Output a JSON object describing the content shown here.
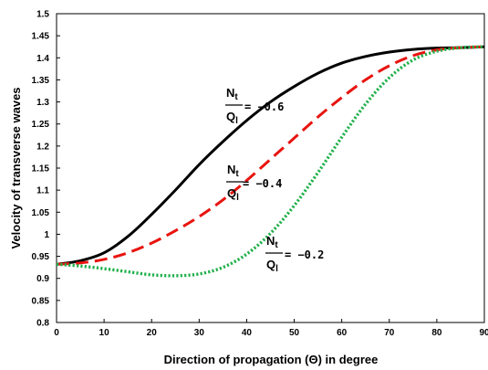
{
  "chart_data": {
    "type": "line",
    "xlabel": "Direction of propagation (Θ) in degree",
    "ylabel": "Velocity of transverse waves",
    "xlim": [
      0,
      90
    ],
    "ylim": [
      0.8,
      1.5
    ],
    "x_ticks": [
      "0",
      "10",
      "20",
      "30",
      "40",
      "50",
      "60",
      "70",
      "80",
      "90"
    ],
    "y_ticks": [
      "0.8",
      "0.85",
      "0.9",
      "0.95",
      "1",
      "1.05",
      "1.1",
      "1.15",
      "1.2",
      "1.25",
      "1.3",
      "1.35",
      "1.4",
      "1.45",
      "1.5"
    ],
    "grid": false,
    "series": [
      {
        "name": "Nt/Ql = −0.6",
        "color": "#000000",
        "style": "solid",
        "x": [
          0,
          5,
          10,
          15,
          20,
          25,
          30,
          35,
          40,
          45,
          50,
          55,
          60,
          65,
          70,
          75,
          80,
          85,
          90
        ],
        "y": [
          0.932,
          0.94,
          0.958,
          0.995,
          1.045,
          1.1,
          1.158,
          1.21,
          1.258,
          1.3,
          1.335,
          1.365,
          1.388,
          1.403,
          1.413,
          1.419,
          1.422,
          1.423,
          1.425
        ]
      },
      {
        "name": "Nt/Ql = −0.4",
        "color": "#e8140f",
        "style": "dashed",
        "x": [
          0,
          5,
          10,
          15,
          20,
          25,
          30,
          35,
          40,
          45,
          50,
          55,
          60,
          65,
          70,
          75,
          80,
          85,
          90
        ],
        "y": [
          0.932,
          0.935,
          0.943,
          0.958,
          0.98,
          1.008,
          1.04,
          1.078,
          1.122,
          1.17,
          1.218,
          1.266,
          1.31,
          1.35,
          1.382,
          1.405,
          1.418,
          1.423,
          1.425
        ]
      },
      {
        "name": "Nt/Ql = −0.2",
        "color": "#1fb04a",
        "style": "dotted",
        "x": [
          0,
          5,
          10,
          15,
          20,
          25,
          30,
          35,
          40,
          45,
          50,
          55,
          60,
          65,
          70,
          75,
          80,
          85,
          90
        ],
        "y": [
          0.932,
          0.928,
          0.922,
          0.915,
          0.908,
          0.906,
          0.91,
          0.925,
          0.955,
          1.002,
          1.065,
          1.14,
          1.22,
          1.295,
          1.355,
          1.395,
          1.415,
          1.423,
          1.425
        ]
      }
    ],
    "annotations": [
      {
        "id": "a1",
        "numerator": "N",
        "numerator_sub": "t",
        "denominator": "Q",
        "denominator_sub": "l",
        "value": "= −0.6"
      },
      {
        "id": "a2",
        "numerator": "N",
        "numerator_sub": "t",
        "denominator": "Q",
        "denominator_sub": "l",
        "value": "= −0.4"
      },
      {
        "id": "a3",
        "numerator": "N",
        "numerator_sub": "t",
        "denominator": "Q",
        "denominator_sub": "l",
        "value": "= −0.2"
      }
    ]
  }
}
